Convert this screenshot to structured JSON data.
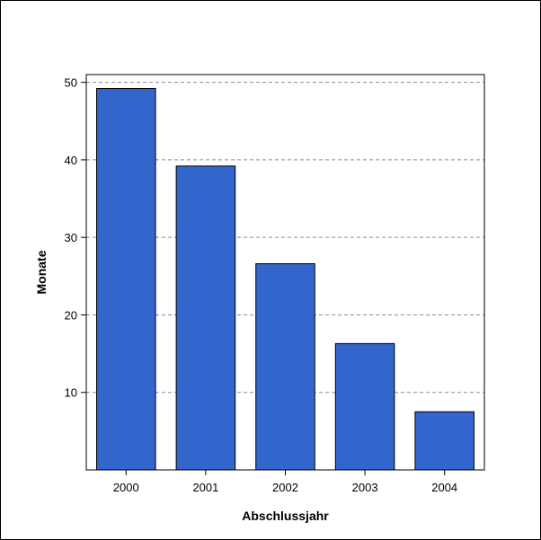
{
  "chart_data": {
    "type": "bar",
    "categories": [
      "2000",
      "2001",
      "2002",
      "2003",
      "2004"
    ],
    "values": [
      49.2,
      39.2,
      26.6,
      16.3,
      7.5
    ],
    "title": "",
    "xlabel": "Abschlussjahr",
    "ylabel": "Monate",
    "ylim": [
      0,
      51
    ],
    "yticks": [
      10,
      20,
      30,
      40,
      50
    ],
    "grid": "horizontal-dashed",
    "bar_color": "#3366cc",
    "grid_color": "#8888aa"
  }
}
